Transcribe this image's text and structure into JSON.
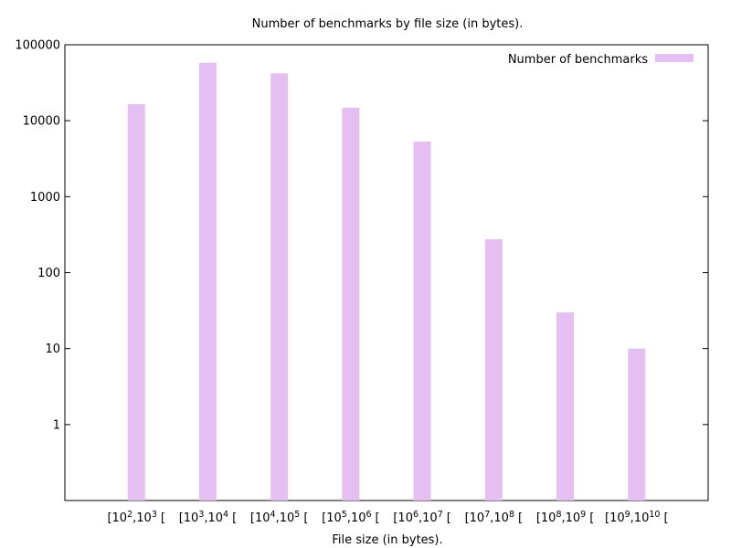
{
  "chart_data": {
    "type": "bar",
    "title": "Number of benchmarks by file size (in bytes).",
    "xlabel": "File size (in bytes).",
    "ylabel": "",
    "yscale": "log",
    "ylim": [
      0.1,
      100000
    ],
    "yticks": [
      "1",
      "10",
      "100",
      "1000",
      "10000",
      "100000"
    ],
    "legend_position": "top-right",
    "grid": false,
    "categories": [
      {
        "base1": "[10",
        "exp1": "2",
        "base2": ",10",
        "exp2": "3",
        "close": "["
      },
      {
        "base1": "[10",
        "exp1": "3",
        "base2": ",10",
        "exp2": "4",
        "close": "["
      },
      {
        "base1": "[10",
        "exp1": "4",
        "base2": ",10",
        "exp2": "5",
        "close": "["
      },
      {
        "base1": "[10",
        "exp1": "5",
        "base2": ",10",
        "exp2": "6",
        "close": "["
      },
      {
        "base1": "[10",
        "exp1": "6",
        "base2": ",10",
        "exp2": "7",
        "close": "["
      },
      {
        "base1": "[10",
        "exp1": "7",
        "base2": ",10",
        "exp2": "8",
        "close": "["
      },
      {
        "base1": "[10",
        "exp1": "8",
        "base2": ",10",
        "exp2": "9",
        "close": "["
      },
      {
        "base1": "[10",
        "exp1": "9",
        "base2": ",10",
        "exp2": "10",
        "close": "["
      }
    ],
    "series": [
      {
        "name": "Number of benchmarks",
        "color": "#e6bff2",
        "values": [
          16500,
          58000,
          42000,
          14800,
          5300,
          275,
          30,
          10
        ]
      }
    ]
  }
}
